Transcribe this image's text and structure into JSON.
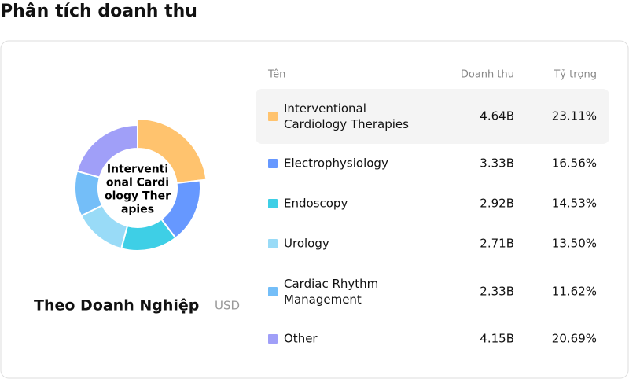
{
  "header": {
    "title": "Phân tích doanh thu"
  },
  "chart_data": {
    "type": "pie",
    "donut": true,
    "center_label": "Interventional Cardiology Therapies",
    "subtitle": "Theo Doanh Nghiệp",
    "unit": "USD",
    "categories": [
      "Interventional Cardiology Therapies",
      "Electrophysiology",
      "Endoscopy",
      "Urology",
      "Cardiac Rhythm Management",
      "Other"
    ],
    "values": [
      23.11,
      16.56,
      14.53,
      13.5,
      11.62,
      20.69
    ],
    "value_labels": [
      "23.11%",
      "16.56%",
      "14.53%",
      "13.50%",
      "11.62%",
      "20.69%"
    ],
    "colors": [
      "#ffc36e",
      "#6698ff",
      "#3ecfe6",
      "#99dbf7",
      "#74bef8",
      "#a09ff8"
    ],
    "highlighted": 0
  },
  "table": {
    "columns": [
      "Tên",
      "Doanh thu",
      "Tỷ trọng"
    ],
    "revenue": [
      "4.64B",
      "3.33B",
      "2.92B",
      "2.71B",
      "2.33B",
      "4.15B"
    ]
  }
}
